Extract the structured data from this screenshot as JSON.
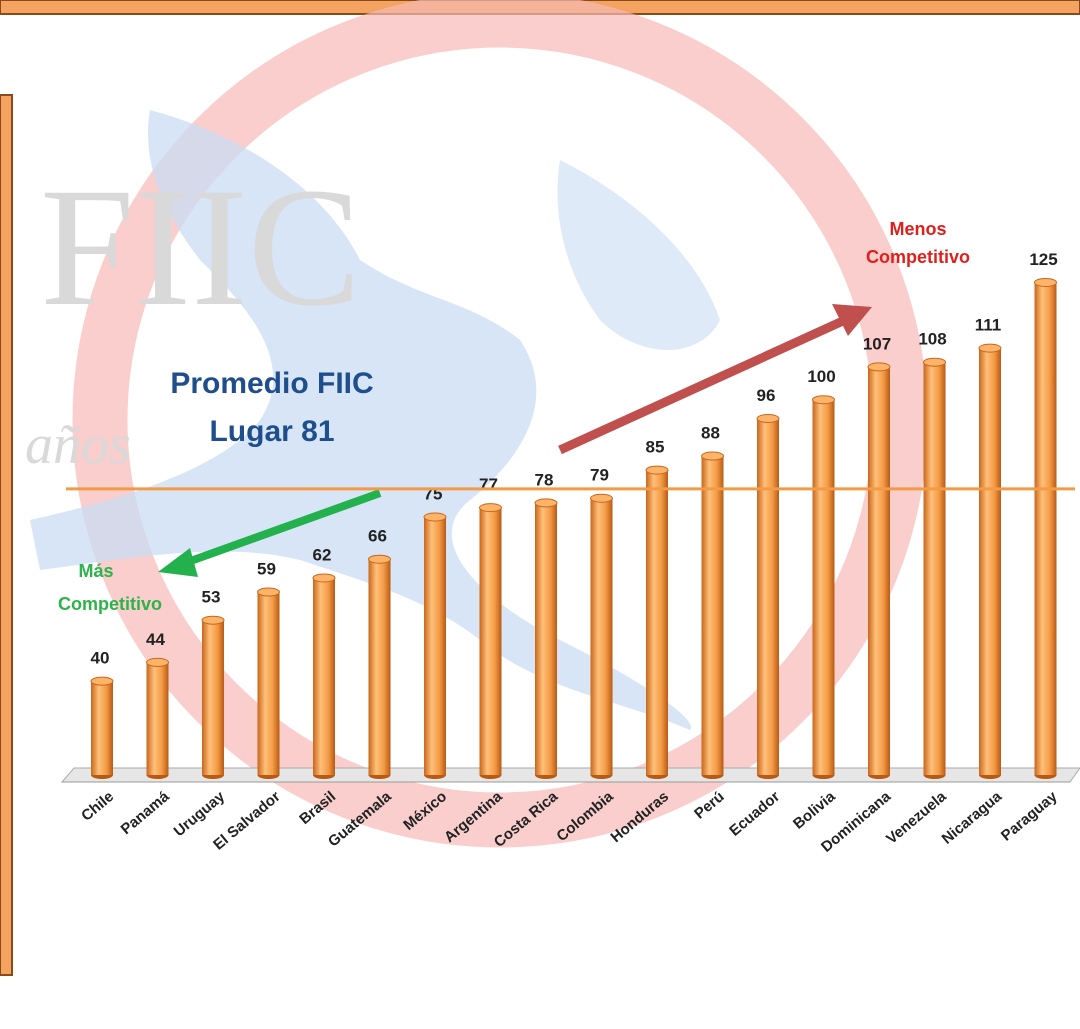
{
  "chart_data": {
    "type": "bar",
    "categories": [
      "Chile",
      "Panamá",
      "Uruguay",
      "El Salvador",
      "Brasil",
      "Guatemala",
      "México",
      "Argentina",
      "Costa Rica",
      "Colombia",
      "Honduras",
      "Perú",
      "Ecuador",
      "Bolivia",
      "Dominicana",
      "Venezuela",
      "Nicaragua",
      "Paraguay"
    ],
    "values": [
      40,
      44,
      53,
      59,
      62,
      66,
      75,
      77,
      78,
      79,
      85,
      88,
      96,
      100,
      107,
      108,
      111,
      125
    ],
    "color": "#f39a45",
    "ylim": [
      20,
      130
    ],
    "reference_line": {
      "value": 81,
      "color": "#f39a45"
    },
    "annotations": {
      "average": [
        "Promedio FIIC",
        "Lugar 81"
      ],
      "less_competitive": [
        "Menos",
        "Competitivo"
      ],
      "more_competitive": [
        "Más",
        "Competitivo"
      ]
    },
    "watermark": [
      "FIIC",
      "años"
    ]
  }
}
